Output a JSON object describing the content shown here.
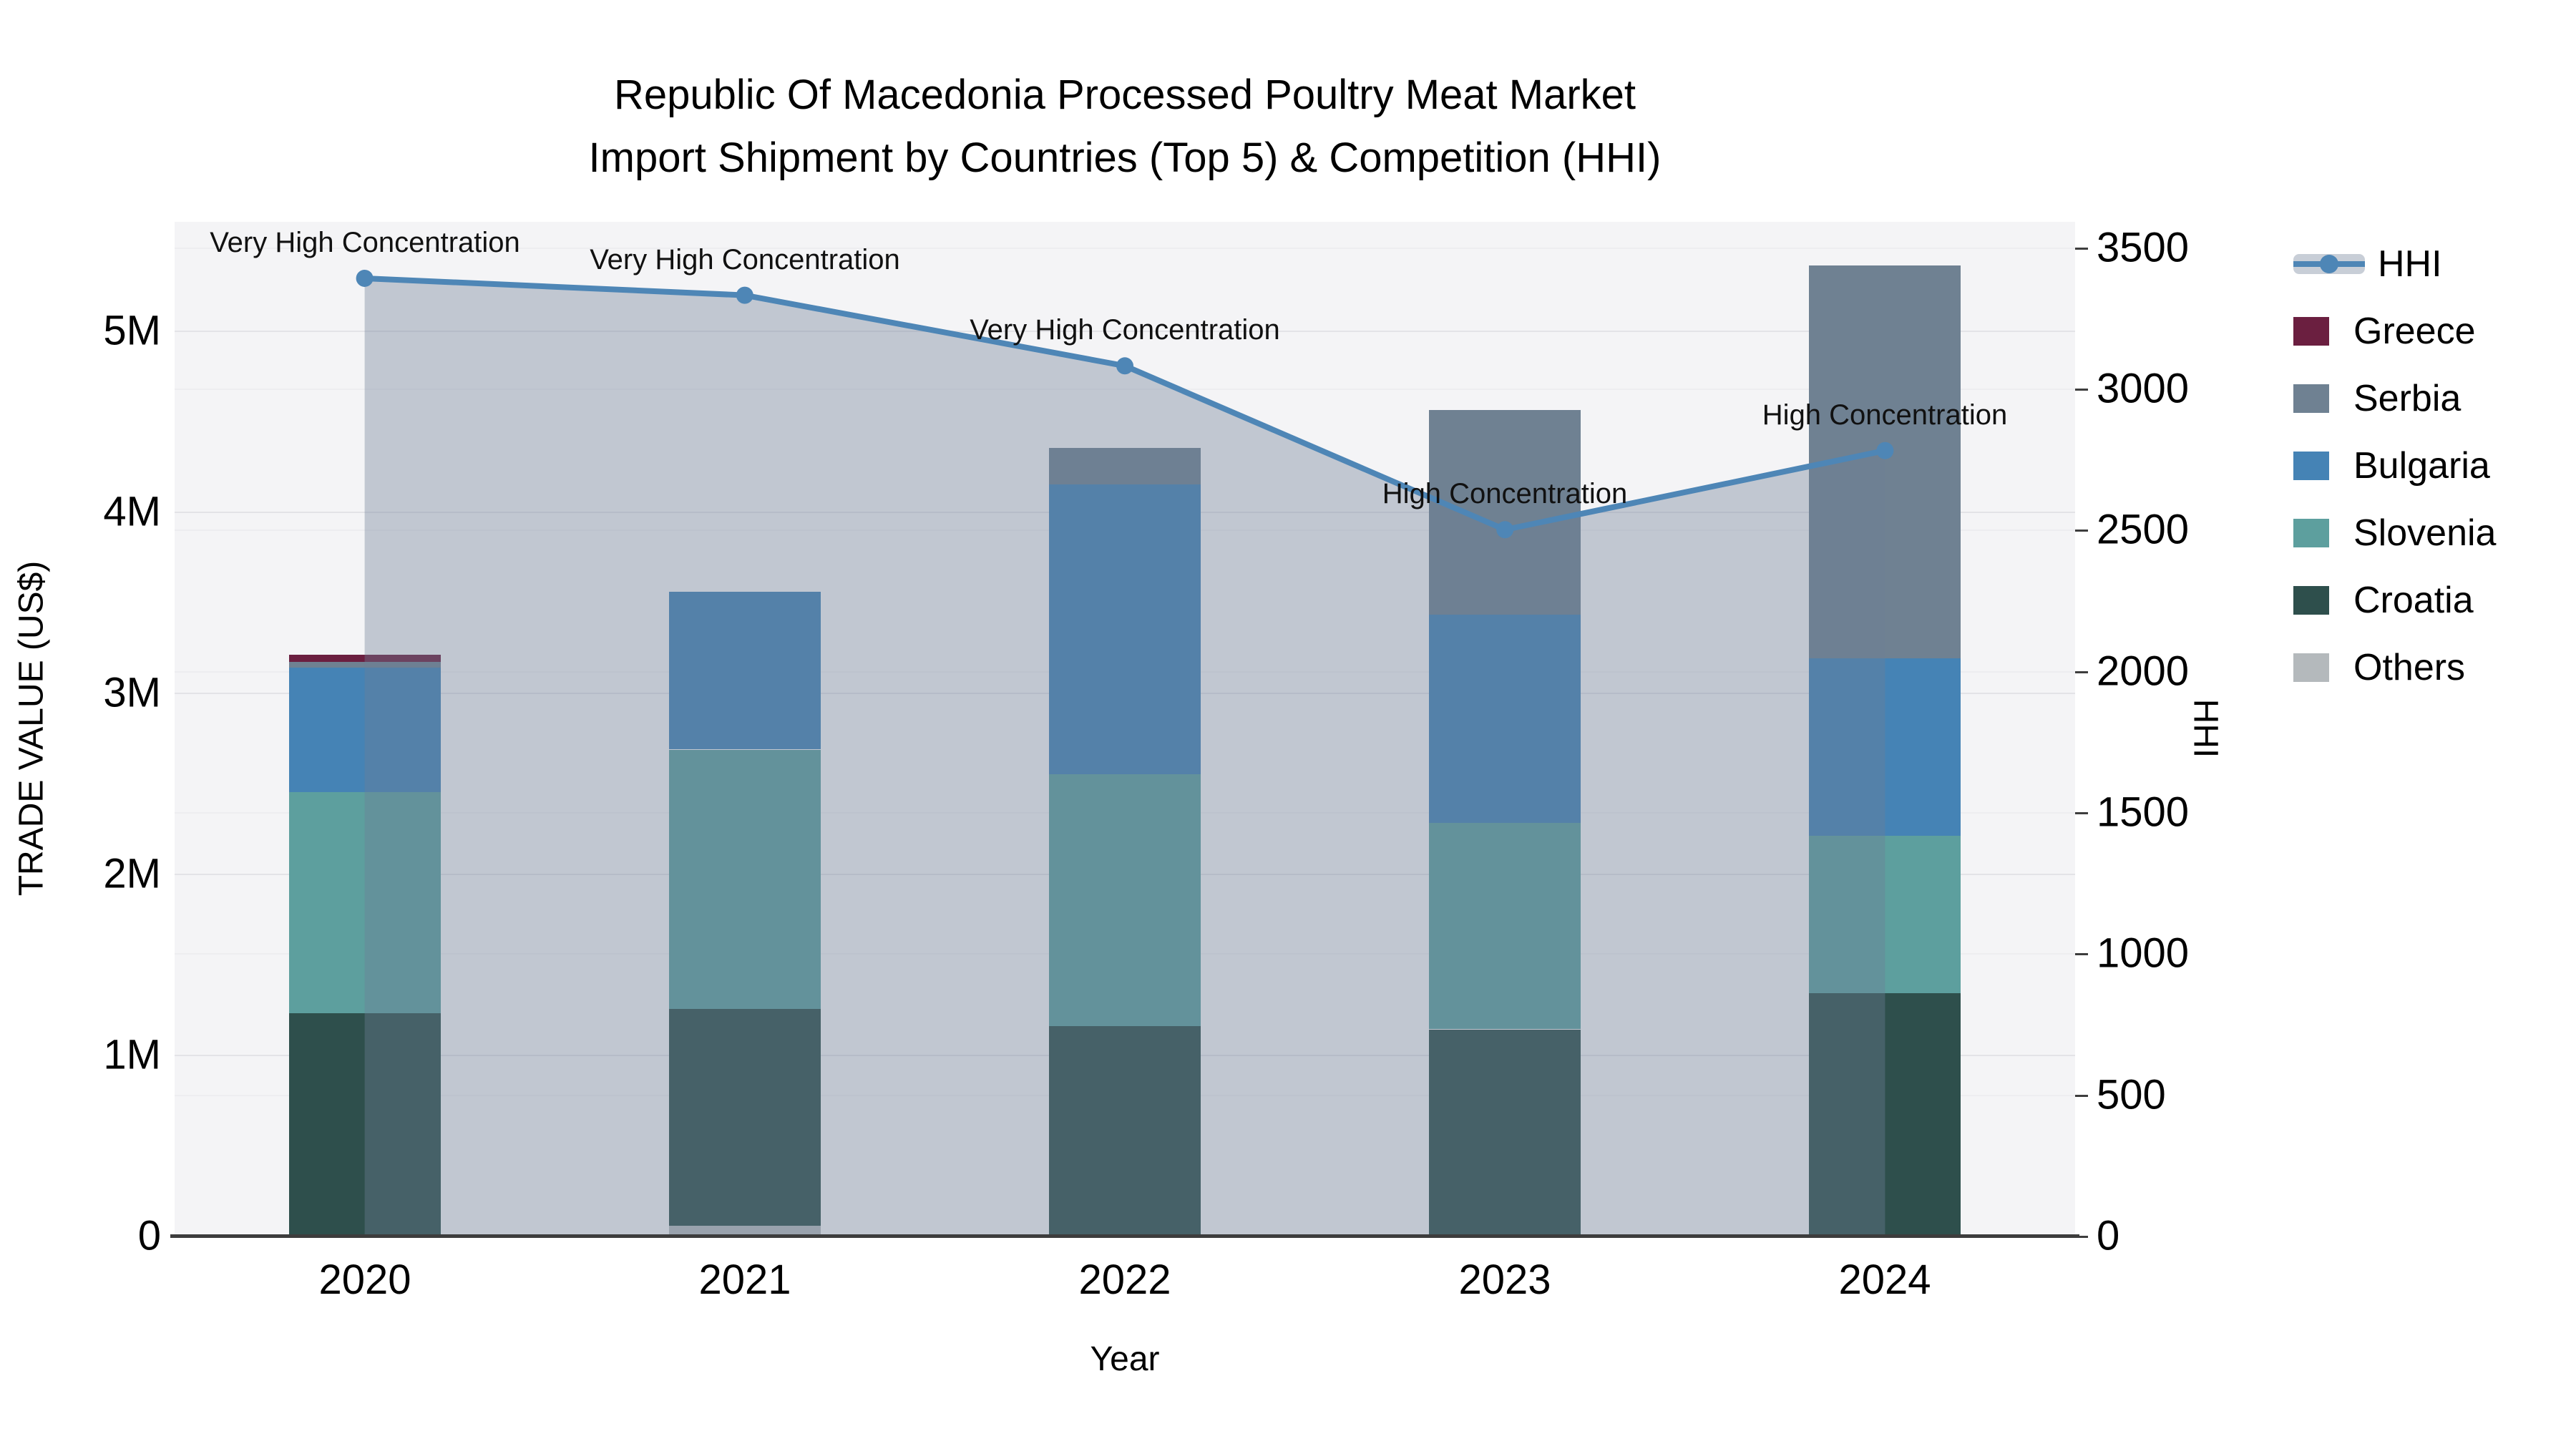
{
  "title": {
    "line1": "Republic Of Macedonia Processed Poultry Meat Market",
    "line2": "Import Shipment by Countries (Top 5) & Competition (HHI)"
  },
  "chart_data": {
    "type": "stacked-bar+line",
    "x_axis": {
      "label": "Year",
      "categories": [
        "2020",
        "2021",
        "2022",
        "2023",
        "2024"
      ]
    },
    "left_axis": {
      "label": "TRADE VALUE (US$)",
      "tick_labels": [
        "0",
        "1M",
        "2M",
        "3M",
        "4M",
        "5M"
      ],
      "tick_values": [
        0,
        1000000,
        2000000,
        3000000,
        4000000,
        5000000
      ],
      "axis_max": 5600000,
      "grid": true
    },
    "right_axis": {
      "label": "HHI",
      "tick_labels": [
        "0",
        "500",
        "1000",
        "1500",
        "2000",
        "2500",
        "3000",
        "3500"
      ],
      "tick_values": [
        0,
        500,
        1000,
        1500,
        2000,
        2500,
        3000,
        3500
      ],
      "axis_max": 3590,
      "grid": true
    },
    "series": [
      {
        "name": "Others",
        "color": "#b4b9bc",
        "values": [
          0,
          55000,
          0,
          0,
          0
        ]
      },
      {
        "name": "Croatia",
        "color": "#2e4f4c",
        "values": [
          1230000,
          1200000,
          1160000,
          1140000,
          1340000
        ]
      },
      {
        "name": "Slovenia",
        "color": "#5d9f9e",
        "values": [
          1220000,
          1430000,
          1390000,
          1140000,
          870000
        ]
      },
      {
        "name": "Bulgaria",
        "color": "#4583b5",
        "values": [
          690000,
          870000,
          1600000,
          1150000,
          980000
        ]
      },
      {
        "name": "Serbia",
        "color": "#6f8192",
        "values": [
          30000,
          0,
          200000,
          1130000,
          2170000
        ]
      },
      {
        "name": "Greece",
        "color": "#6b1f40",
        "values": [
          40000,
          0,
          0,
          0,
          0
        ]
      }
    ],
    "line_series": {
      "name": "HHI",
      "color": "#4e86b6",
      "area_color": "rgba(110,125,150,0.38)",
      "values": [
        3390,
        3330,
        3080,
        2500,
        2780
      ]
    },
    "annotations": [
      {
        "x_index": 0,
        "text": "Very High Concentration"
      },
      {
        "x_index": 1,
        "text": "Very High Concentration"
      },
      {
        "x_index": 2,
        "text": "Very High Concentration"
      },
      {
        "x_index": 3,
        "text": "High Concentration"
      },
      {
        "x_index": 4,
        "text": "High Concentration"
      }
    ],
    "legend": {
      "position": "right",
      "entries": [
        "HHI",
        "Greece",
        "Serbia",
        "Bulgaria",
        "Slovenia",
        "Croatia",
        "Others"
      ]
    },
    "colors": {
      "plot_background": "#f4f4f6",
      "grid_main": "#e3e3e7",
      "grid_minor": "#ededf0",
      "axis_line": "#3d3d3d",
      "text": "#000000"
    }
  }
}
